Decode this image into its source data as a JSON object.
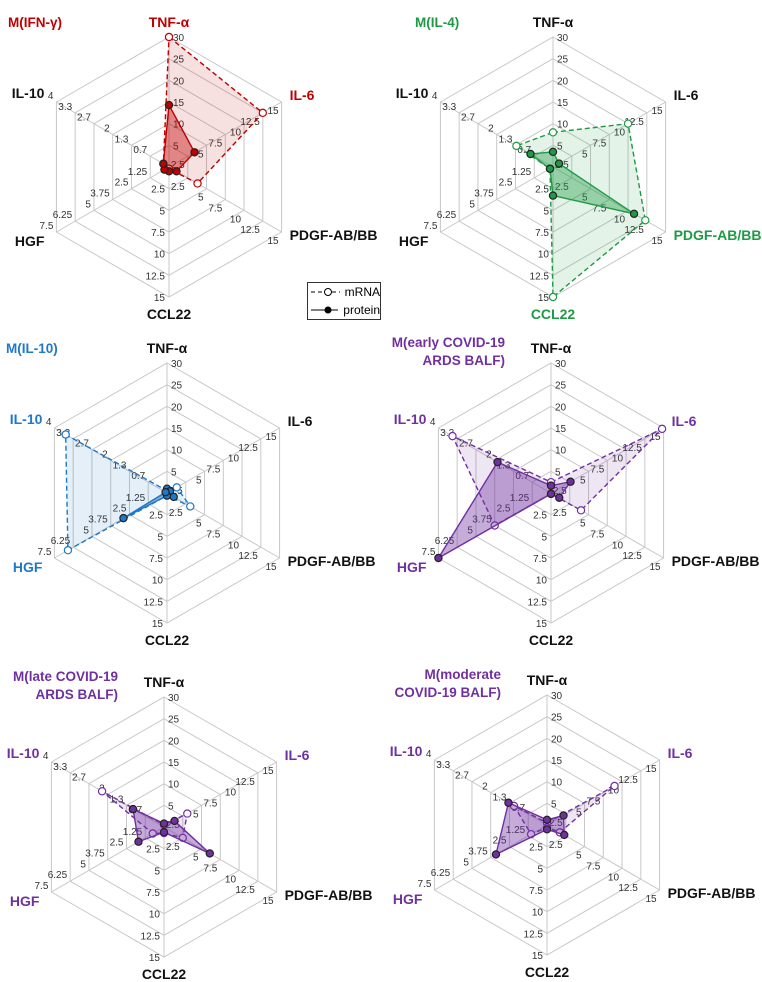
{
  "chart_data": {
    "type": "radar",
    "axes": [
      {
        "label": "TNF-α",
        "max": 30,
        "ticks": [
          "5",
          "10",
          "15",
          "20",
          "25",
          "30"
        ]
      },
      {
        "label": "IL-6",
        "max": 15,
        "ticks": [
          "2.5",
          "5",
          "7.5",
          "10",
          "12.5",
          "15"
        ]
      },
      {
        "label": "PDGF-AB/BB",
        "max": 15,
        "ticks": [
          "2.5",
          "5",
          "7.5",
          "10",
          "12.5",
          "15"
        ]
      },
      {
        "label": "CCL22",
        "max": 15,
        "ticks": [
          "2.5",
          "5",
          "7.5",
          "10",
          "12.5",
          "15"
        ]
      },
      {
        "label": "HGF",
        "max": 7.5,
        "ticks": [
          "1.25",
          "2.5",
          "3.75",
          "5",
          "6.25",
          "7.5"
        ]
      },
      {
        "label": "IL-10",
        "max": 4,
        "ticks": [
          "0.7",
          "1.3",
          "2",
          "2.7",
          "3.3",
          "4"
        ]
      }
    ],
    "legend": {
      "placement": "center",
      "mrna": "mRNA",
      "protein": "protein"
    },
    "charts": [
      {
        "title": [
          "M(IFN-γ)"
        ],
        "color": "#c00000",
        "highlight": [
          "TNF-α",
          "IL-6"
        ],
        "series": [
          {
            "name": "mRNA",
            "values": [
              30,
              12.5,
              3.8,
              0.2,
              0.3,
              0.2
            ]
          },
          {
            "name": "protein",
            "values": [
              14.3,
              3.4,
              1.0,
              0.5,
              0.3,
              0.2
            ]
          }
        ]
      },
      {
        "title": [
          "M(IL-4)"
        ],
        "color": "#1e9a45",
        "highlight": [
          "PDGF-AB/BB",
          "CCL22"
        ],
        "series": [
          {
            "name": "mRNA",
            "values": [
              8,
              10,
              12.3,
              15,
              0.2,
              1.3
            ]
          },
          {
            "name": "protein",
            "values": [
              3.5,
              0.8,
              10.8,
              3.3,
              0.2,
              0.8
            ]
          }
        ]
      },
      {
        "title": [
          "M(IL-10)"
        ],
        "color": "#1f78c8",
        "highlight": [
          "IL-10",
          "HGF"
        ],
        "series": [
          {
            "name": "mRNA",
            "values": [
              0.5,
              1.3,
              3.1,
              0.3,
              6.6,
              3.6
            ]
          },
          {
            "name": "protein",
            "values": [
              1.0,
              0.4,
              0.9,
              0.3,
              2.9,
              0.05
            ]
          }
        ]
      },
      {
        "title": [
          "M(early COVID-19",
          "ARDS BALF)"
        ],
        "color": "#7030a0",
        "highlight": [
          "IL-10",
          "IL-6",
          "HGF"
        ],
        "series": [
          {
            "name": "mRNA",
            "values": [
              2.5,
              14.8,
              4.0,
              0.1,
              3.75,
              3.5
            ]
          },
          {
            "name": "protein",
            "values": [
              1.7,
              2.6,
              1.1,
              0.1,
              7.5,
              1.9
            ]
          }
        ]
      },
      {
        "title": [
          "M(late COVID-19",
          "ARDS BALF)"
        ],
        "color": "#7030a0",
        "highlight": [
          "IL-10",
          "IL-6",
          "HGF"
        ],
        "series": [
          {
            "name": "mRNA",
            "values": [
              0.5,
              3.1,
              2.5,
              0.7,
              0.75,
              2.2
            ]
          },
          {
            "name": "protein",
            "values": [
              0.8,
              1.4,
              6.1,
              0.6,
              1.7,
              1.1
            ]
          }
        ]
      },
      {
        "title": [
          "M(moderate",
          "COVID-19 BALF)"
        ],
        "color": "#7030a0",
        "highlight": [
          "IL-10",
          "IL-6",
          "HGF"
        ],
        "series": [
          {
            "name": "mRNA",
            "values": [
              0.5,
              9.0,
              1.7,
              0.3,
              1.06,
              1.17
            ]
          },
          {
            "name": "protein",
            "values": [
              1.2,
              2.2,
              2.3,
              0.5,
              3.4,
              1.37
            ]
          }
        ]
      }
    ]
  }
}
